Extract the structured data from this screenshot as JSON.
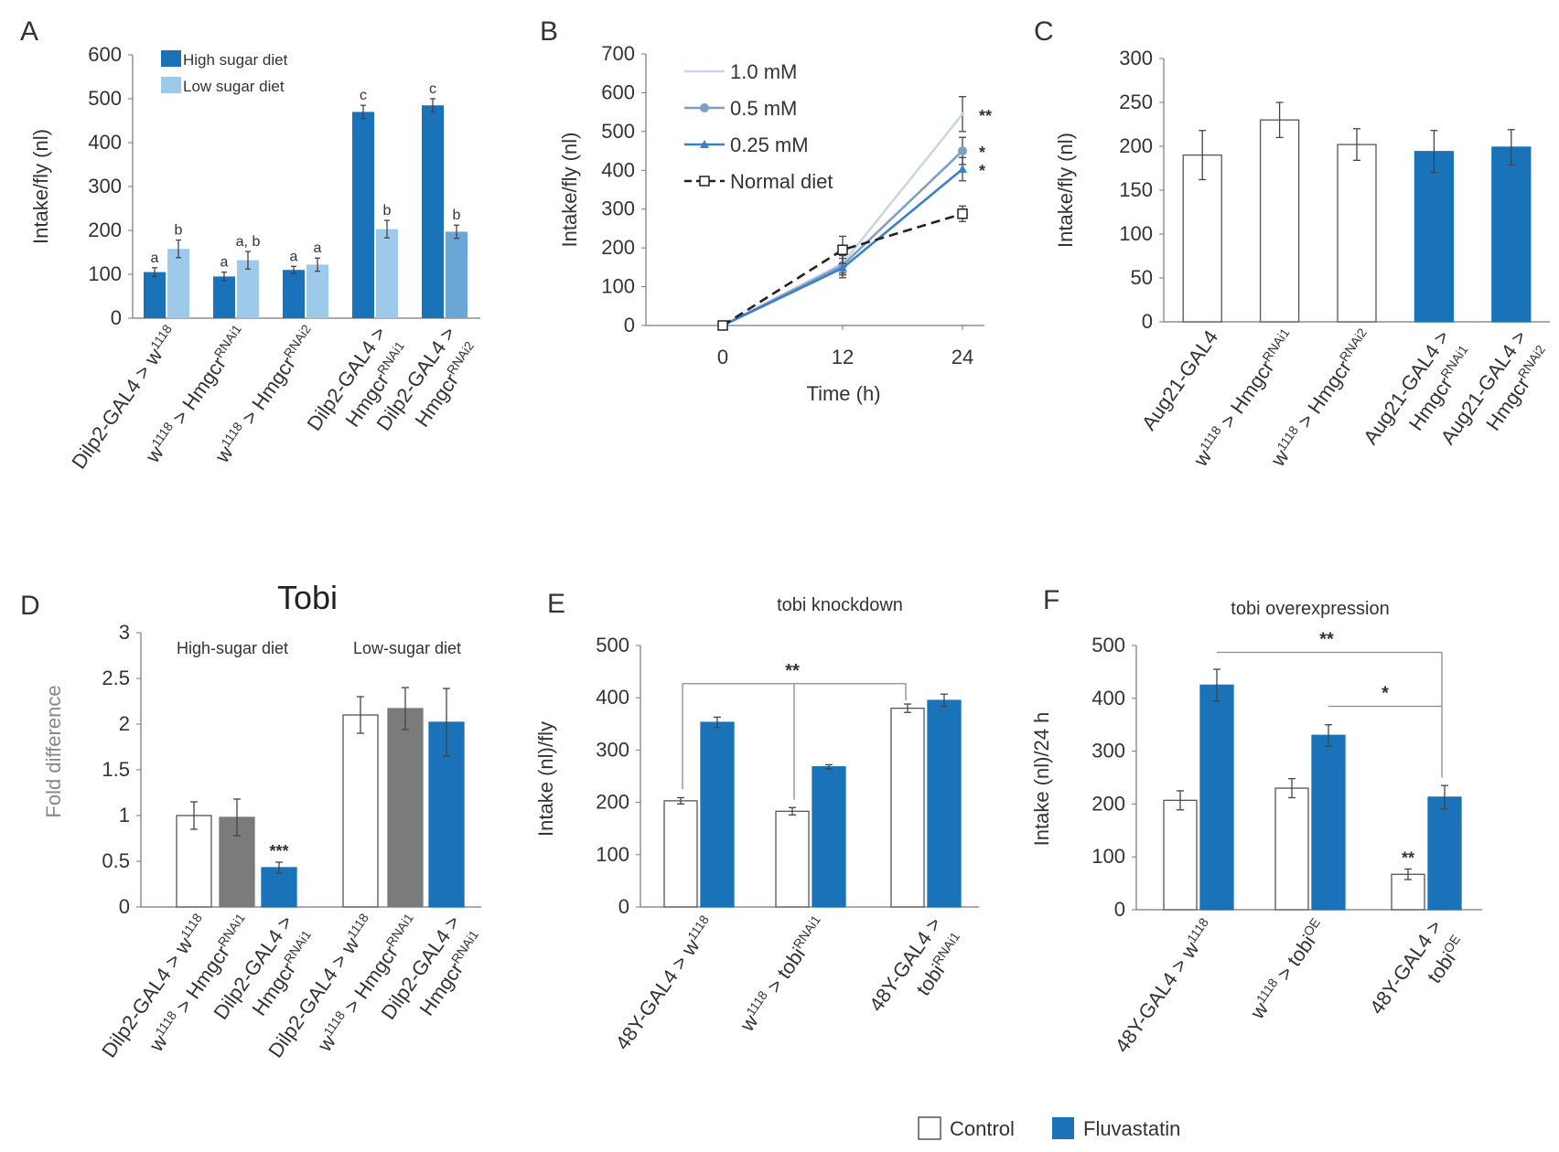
{
  "colors": {
    "dark_blue": "#1a72b8",
    "light_blue": "#9dc9ea",
    "white": "#ffffff",
    "gray": "#7b7b7b",
    "outline": "#555555"
  },
  "chart_data": [
    {
      "panel": "A",
      "type": "bar",
      "ylabel": "Intake/fly (nl)",
      "ylim": [
        0,
        600
      ],
      "yticks": [
        "0",
        "100",
        "200",
        "300",
        "400",
        "500",
        "600"
      ],
      "categories": [
        {
          "pre": "Dilp2-GAL4 > w",
          "sup": "1118"
        },
        {
          "pre": "w",
          "sup1": "1118",
          "mid": " > Hmgcr",
          "sup": "RNAi1"
        },
        {
          "pre": "w",
          "sup1": "1118",
          "mid": " > Hmgcr",
          "sup": "RNAi2"
        },
        {
          "pre": "Dilp2-GAL4 >",
          "line2": "Hmgcr",
          "sup": "RNAi1"
        },
        {
          "pre": "Dilp2-GAL4 >",
          "line2": "Hmgcr",
          "sup": "RNAi2"
        }
      ],
      "series": [
        {
          "name": "High sugar diet",
          "values": [
            105,
            95,
            110,
            470,
            485
          ],
          "errors": [
            10,
            10,
            8,
            15,
            15
          ],
          "letters": [
            "a",
            "a",
            "a",
            "c",
            "c"
          ]
        },
        {
          "name": "Low sugar diet",
          "values": [
            158,
            132,
            122,
            203,
            197
          ],
          "errors": [
            20,
            20,
            15,
            20,
            15
          ],
          "letters": [
            "b",
            "a, b",
            "a",
            "b",
            "b"
          ]
        }
      ],
      "legend": "top-left"
    },
    {
      "panel": "B",
      "type": "line",
      "xlabel": "Time (h)",
      "ylabel": "Intake/fly (nl)",
      "ylim": [
        0,
        700
      ],
      "yticks": [
        "0",
        "100",
        "200",
        "300",
        "400",
        "500",
        "600",
        "700"
      ],
      "x": [
        0,
        12,
        24
      ],
      "xticks": [
        "0",
        "12",
        "24"
      ],
      "series": [
        {
          "name": "1.0 mM",
          "values": [
            0,
            160,
            545
          ],
          "errors": [
            5,
            25,
            45
          ],
          "sig": "**"
        },
        {
          "name": "0.5 mM",
          "values": [
            0,
            155,
            450
          ],
          "errors": [
            5,
            25,
            35
          ],
          "sig": "*"
        },
        {
          "name": "0.25 mM",
          "values": [
            0,
            148,
            403
          ],
          "errors": [
            5,
            25,
            30
          ],
          "sig": "*"
        },
        {
          "name": "Normal diet",
          "values": [
            0,
            195,
            288
          ],
          "errors": [
            5,
            35,
            20
          ],
          "sig": ""
        }
      ],
      "legend": "top-left"
    },
    {
      "panel": "C",
      "type": "bar",
      "ylabel": "Intake/fly (nl)",
      "ylim": [
        0,
        300
      ],
      "yticks": [
        "0",
        "50",
        "100",
        "150",
        "200",
        "250",
        "300"
      ],
      "categories": [
        {
          "pre": "Aug21-GAL4"
        },
        {
          "pre": "w",
          "sup1": "1118",
          "mid": " > Hmgcr",
          "sup": "RNAi1"
        },
        {
          "pre": "w",
          "sup1": "1118",
          "mid": " > Hmgcr",
          "sup": "RNAi2"
        },
        {
          "pre": "Aug21-GAL4 >",
          "line2": "Hmgcr",
          "sup": "RNAi1"
        },
        {
          "pre": "Aug21-GAL4 >",
          "line2": "Hmgcr",
          "sup": "RNAi2"
        }
      ],
      "series": [
        {
          "name": "Intake",
          "values": [
            190,
            230,
            202,
            194,
            199
          ],
          "errors": [
            28,
            20,
            18,
            24,
            20
          ],
          "fills": [
            "white",
            "white",
            "white",
            "dark_blue",
            "dark_blue"
          ]
        }
      ]
    },
    {
      "panel": "D",
      "type": "bar",
      "title": "Tobi",
      "ylabel": "Fold difference",
      "ylim": [
        0,
        3
      ],
      "yticks": [
        "0",
        "0.5",
        "1",
        "1.5",
        "2",
        "2.5",
        "3"
      ],
      "groups": [
        "High-sugar diet",
        "Low-sugar diet"
      ],
      "categories": [
        {
          "pre": "Dilp2-GAL4 > w",
          "sup": "1118"
        },
        {
          "pre": "w",
          "sup1": "1118",
          "mid": " > Hmgcr",
          "sup": "RNAi1"
        },
        {
          "pre": "Dilp2-GAL4 >",
          "line2": "Hmgcr",
          "sup": "RNAi1"
        },
        {
          "pre": "Dilp2-GAL4 > w",
          "sup": "1118"
        },
        {
          "pre": "w",
          "sup1": "1118",
          "mid": " > Hmgcr",
          "sup": "RNAi1"
        },
        {
          "pre": "Dilp2-GAL4 >",
          "line2": "Hmgcr",
          "sup": "RNAi1"
        }
      ],
      "series": [
        {
          "name": "Fold difference",
          "values": [
            1.0,
            0.98,
            0.43,
            2.1,
            2.17,
            2.02
          ],
          "errors": [
            0.15,
            0.2,
            0.06,
            0.2,
            0.23,
            0.37
          ],
          "fills": [
            "white",
            "gray",
            "dark_blue",
            "white",
            "gray",
            "dark_blue"
          ],
          "sig": [
            "",
            "",
            "***",
            "",
            "",
            ""
          ]
        }
      ]
    },
    {
      "panel": "E",
      "type": "bar",
      "title": "tobi knockdown",
      "ylabel": "Intake (nl)/fly",
      "ylim": [
        0,
        500
      ],
      "yticks": [
        "0",
        "100",
        "200",
        "300",
        "400",
        "500"
      ],
      "categories": [
        {
          "pre": "48Y-GAL4 > w",
          "sup": "1118"
        },
        {
          "pre": "w",
          "sup1": "1118",
          "mid": " > tobi",
          "sup": "RNAi1"
        },
        {
          "pre": "48Y-GAL4 >",
          "line2": "tobi",
          "sup": "RNAi1"
        }
      ],
      "series": [
        {
          "name": "Control",
          "values": [
            203,
            183,
            380
          ],
          "errors": [
            6,
            7,
            8
          ]
        },
        {
          "name": "Fluvastatin",
          "values": [
            353,
            268,
            395
          ],
          "errors": [
            10,
            4,
            12
          ]
        }
      ],
      "annotations": [
        "**"
      ]
    },
    {
      "panel": "F",
      "type": "bar",
      "title": "tobi overexpression",
      "ylabel": "Intake (nl)/24 h",
      "ylim": [
        0,
        500
      ],
      "yticks": [
        "0",
        "100",
        "200",
        "300",
        "400",
        "500"
      ],
      "categories": [
        {
          "pre": "48Y-GAL4 > w",
          "sup": "1118"
        },
        {
          "pre": "w",
          "sup1": "1118",
          "mid": " > tobi",
          "sup": "OE"
        },
        {
          "pre": "48Y-GAL4 >",
          "line2": "tobi",
          "sup": "OE"
        }
      ],
      "series": [
        {
          "name": "Control",
          "values": [
            207,
            230,
            67
          ],
          "errors": [
            18,
            18,
            10
          ],
          "sig": [
            "",
            "",
            "**"
          ]
        },
        {
          "name": "Fluvastatin",
          "values": [
            425,
            330,
            213
          ],
          "errors": [
            30,
            20,
            22
          ]
        }
      ],
      "annotations": [
        "**",
        "*"
      ]
    }
  ],
  "legend": {
    "control": "Control",
    "fluvastatin": "Fluvastatin"
  }
}
